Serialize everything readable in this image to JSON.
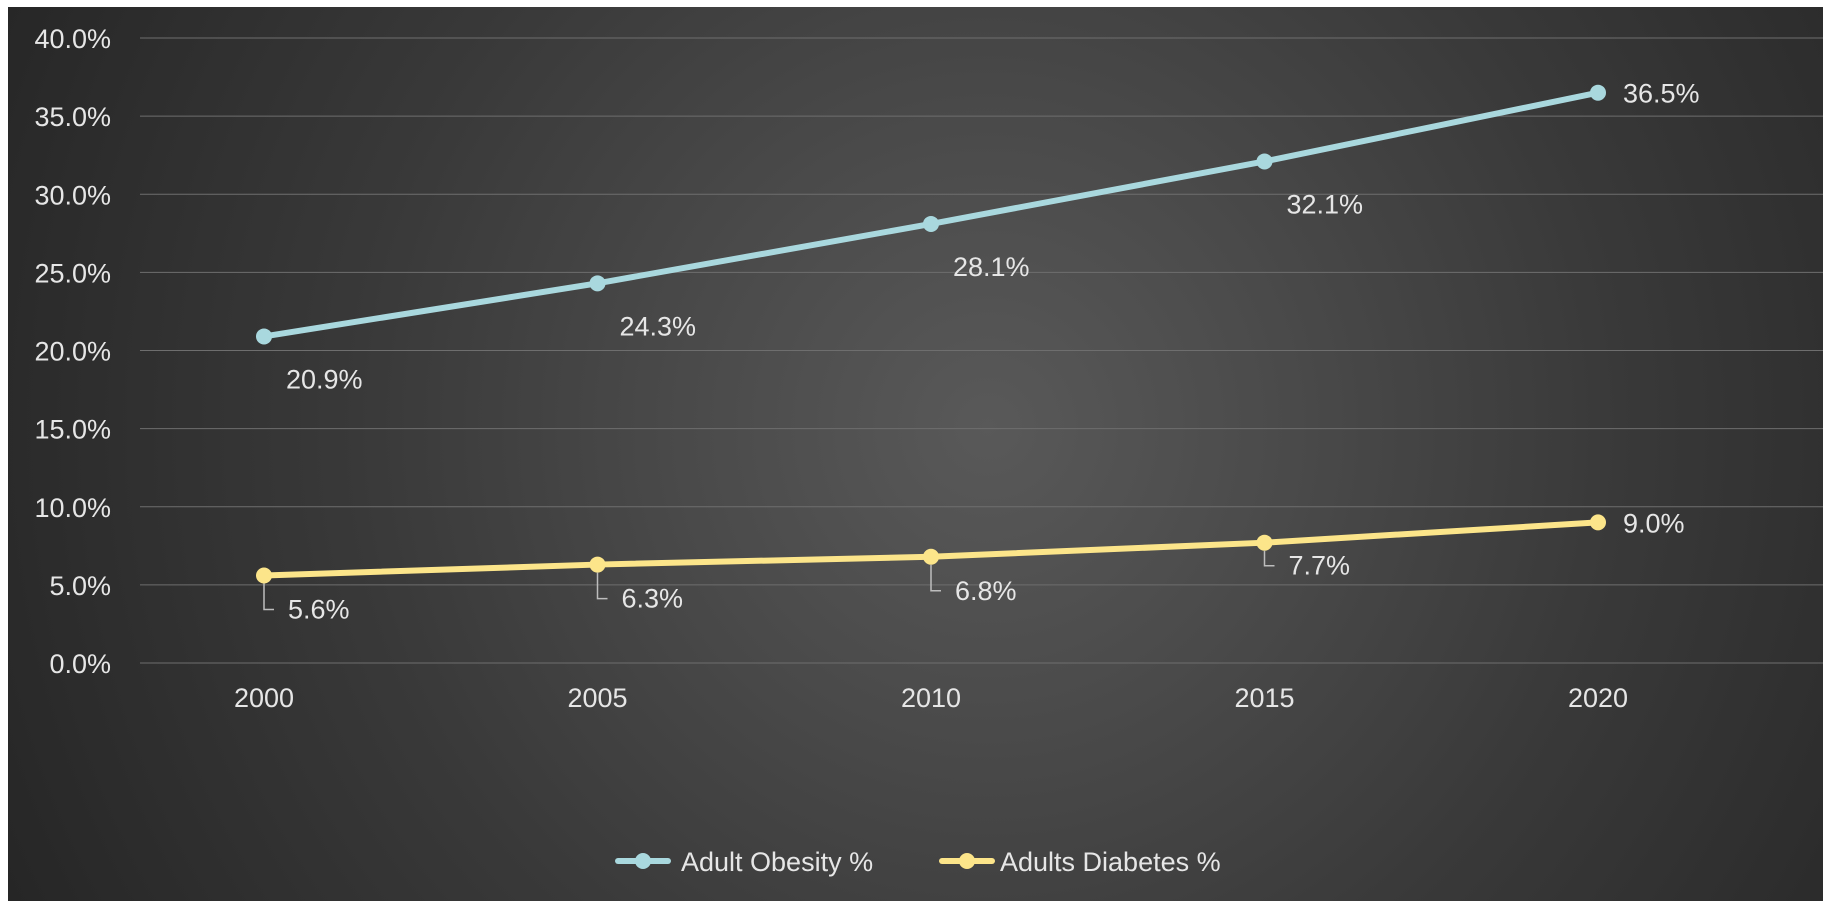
{
  "chart_data": {
    "type": "line",
    "title": "",
    "xlabel": "",
    "ylabel": "",
    "categories": [
      "2000",
      "2005",
      "2010",
      "2015",
      "2020"
    ],
    "ylim": [
      0,
      40
    ],
    "y_ticks": [
      "0.0%",
      "5.0%",
      "10.0%",
      "15.0%",
      "20.0%",
      "25.0%",
      "30.0%",
      "35.0%",
      "40.0%"
    ],
    "grid": true,
    "legend_position": "bottom",
    "series": [
      {
        "name": "Adult Obesity %",
        "color": "#a9d8de",
        "values": [
          20.9,
          24.3,
          28.1,
          32.1,
          36.5
        ],
        "labels": [
          "20.9%",
          "24.3%",
          "28.1%",
          "32.1%",
          "36.5%"
        ]
      },
      {
        "name": "Adults Diabetes %",
        "color": "#fce58a",
        "values": [
          5.6,
          6.3,
          6.8,
          7.7,
          9.0
        ],
        "labels": [
          "5.6%",
          "6.3%",
          "6.8%",
          "7.7%",
          "9.0%"
        ]
      }
    ]
  }
}
